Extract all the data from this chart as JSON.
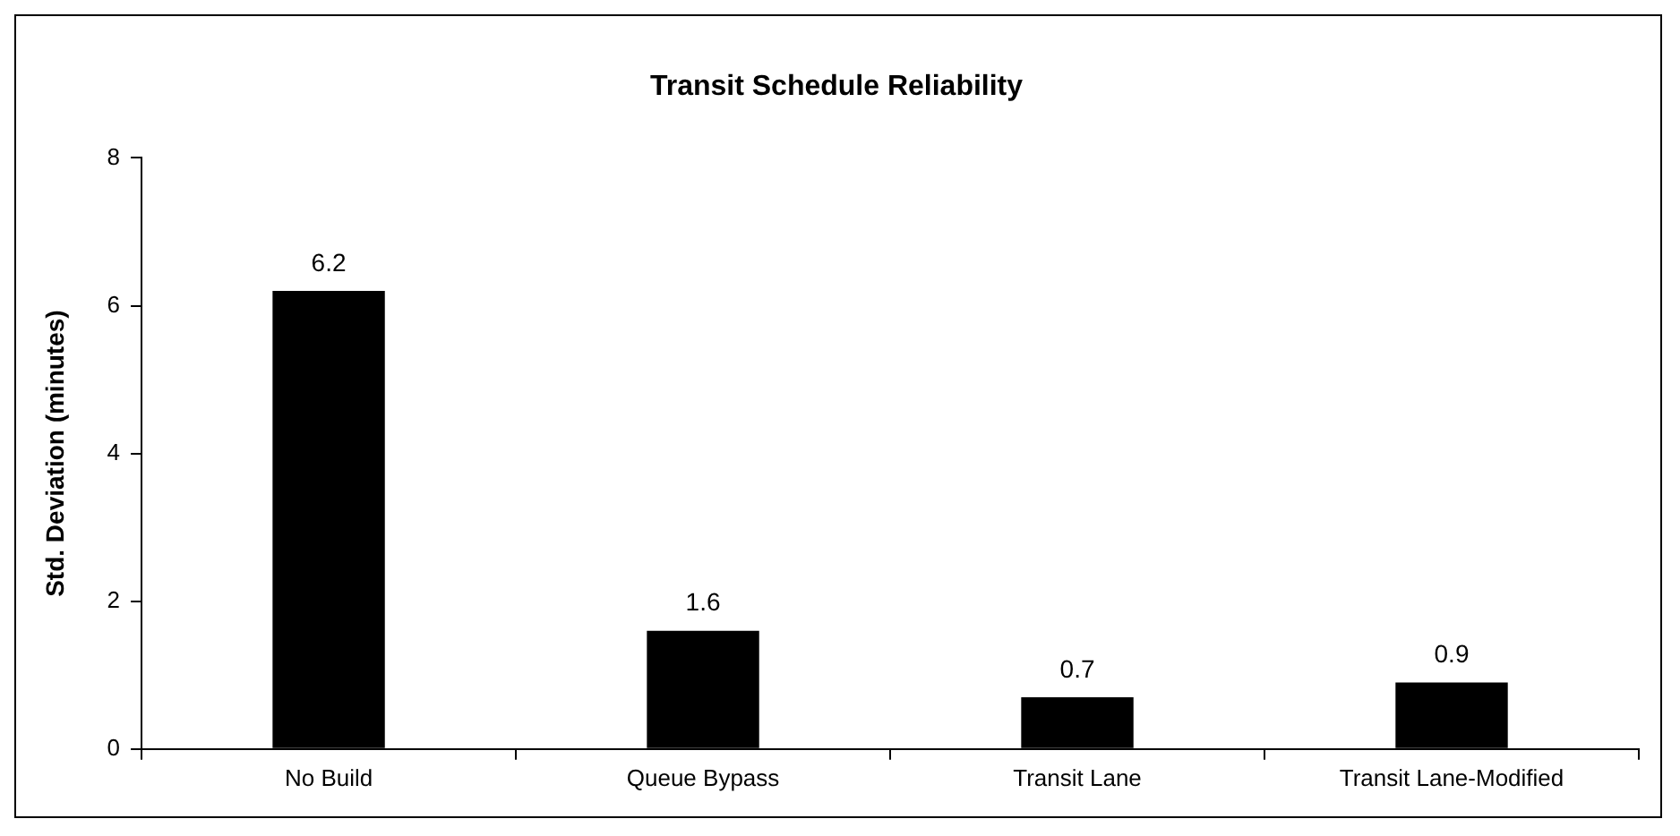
{
  "chart_data": {
    "type": "bar",
    "title": "Transit Schedule Reliability",
    "ylabel": "Std. Deviation (minutes)",
    "categories": [
      "No Build",
      "Queue Bypass",
      "Transit Lane",
      "Transit Lane-Modified"
    ],
    "values": [
      6.2,
      1.6,
      0.7,
      0.9
    ],
    "color": "#000000",
    "ylim": [
      0,
      8
    ],
    "yticks": [
      0,
      2,
      4,
      6,
      8
    ],
    "grid": false,
    "legend": false,
    "data_labels": true
  }
}
